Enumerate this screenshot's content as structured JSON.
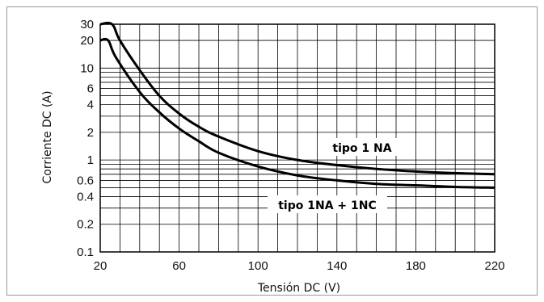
{
  "chart_data": {
    "type": "line",
    "title": "",
    "xlabel": "Tensión DC (V)",
    "ylabel": "Corriente DC (A)",
    "xlim": [
      20,
      220
    ],
    "ylim": [
      0.1,
      30
    ],
    "y_scale": "log",
    "grid": true,
    "x_ticks": [
      "20",
      "60",
      "100",
      "140",
      "180",
      "220"
    ],
    "y_ticks": [
      "0.1",
      "0.2",
      "0.4",
      "0.6",
      "1",
      "2",
      "4",
      "6",
      "10",
      "20",
      "30"
    ],
    "series": [
      {
        "name": "tipo 1 NA",
        "x": [
          20,
          26,
          30,
          40,
          50,
          60,
          70,
          80,
          100,
          120,
          140,
          160,
          180,
          200,
          220
        ],
        "y": [
          30,
          30,
          20,
          9.5,
          5,
          3.2,
          2.3,
          1.8,
          1.25,
          1.0,
          0.88,
          0.8,
          0.75,
          0.72,
          0.7
        ]
      },
      {
        "name": "tipo 1NA + 1NC",
        "x": [
          20,
          24,
          28,
          40,
          50,
          60,
          70,
          80,
          100,
          120,
          140,
          160,
          180,
          200,
          220
        ],
        "y": [
          20,
          20,
          13,
          5.5,
          3.3,
          2.2,
          1.6,
          1.2,
          0.85,
          0.68,
          0.6,
          0.55,
          0.53,
          0.51,
          0.5
        ]
      }
    ]
  }
}
